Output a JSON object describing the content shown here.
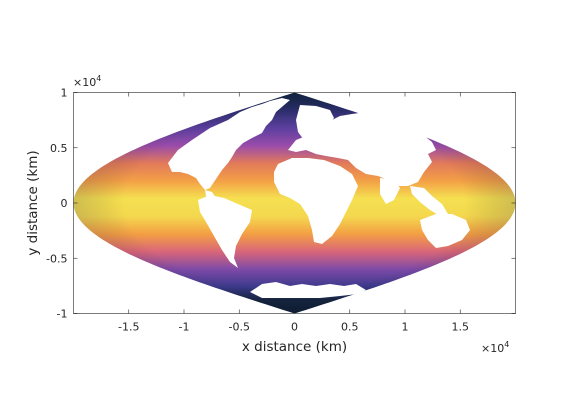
{
  "chart_data": {
    "type": "heatmap",
    "projection": "sinusoidal",
    "xlabel": "x distance (km)",
    "ylabel": "y distance (km)",
    "x_exponent_label": "×10",
    "x_exponent_power": "4",
    "y_exponent_label": "×10",
    "y_exponent_power": "4",
    "xlim": [
      -20000,
      20000
    ],
    "ylim": [
      -10000,
      10000
    ],
    "x_ticks": [
      -15000,
      -10000,
      -5000,
      0,
      5000,
      10000,
      15000
    ],
    "x_tick_labels": [
      "-1.5",
      "-1",
      "-0.5",
      "0",
      "0.5",
      "1",
      "1.5"
    ],
    "y_ticks": [
      -10000,
      -5000,
      0,
      5000,
      10000
    ],
    "y_tick_labels": [
      "-1",
      "-0.5",
      "0",
      "0.5",
      "1"
    ],
    "grid": false,
    "colormap_stops": [
      "#0d2438",
      "#3b3a8c",
      "#8a4bb0",
      "#d9587a",
      "#f2913b",
      "#f5e455"
    ],
    "land_color": "#ffffff"
  }
}
